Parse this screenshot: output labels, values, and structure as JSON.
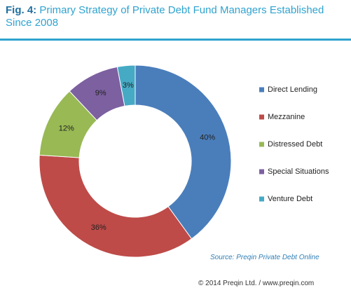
{
  "fig_label": "Fig. 4:",
  "chart_data": {
    "type": "pie",
    "donut": true,
    "title": "Primary Strategy of Private Debt Fund Managers Established Since 2008",
    "categories": [
      "Direct Lending",
      "Mezzanine",
      "Distressed Debt",
      "Special Situations",
      "Venture Debt"
    ],
    "values": [
      40,
      36,
      12,
      9,
      3
    ],
    "value_labels": [
      "40%",
      "36%",
      "12%",
      "9%",
      "3%"
    ],
    "colors": [
      "#4a7ebb",
      "#be4b48",
      "#98b954",
      "#7d60a0",
      "#46aac5"
    ],
    "legend": "right"
  },
  "source": "Source: Preqin Private Debt Online",
  "copyright": "© 2014 Preqin Ltd. / www.preqin.com"
}
